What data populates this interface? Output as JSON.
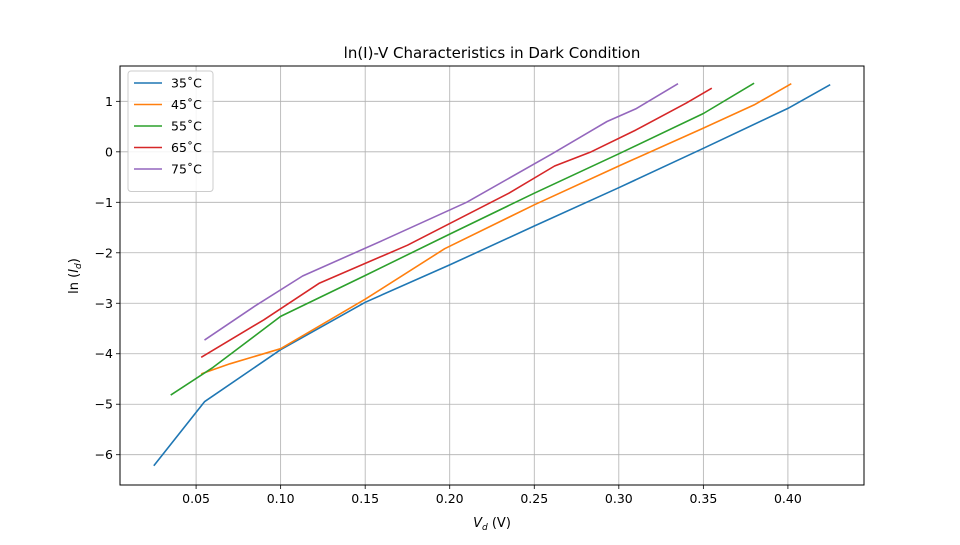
{
  "chart_data": {
    "type": "line",
    "title": "ln(I)-V Characteristics in Dark Condition",
    "xlabel": "V_d (V)",
    "ylabel": "ln (I_d)",
    "xlim": [
      0.005,
      0.445
    ],
    "ylim": [
      -6.6,
      1.7
    ],
    "xticks": [
      0.05,
      0.1,
      0.15,
      0.2,
      0.25,
      0.3,
      0.35,
      0.4
    ],
    "yticks": [
      -6,
      -5,
      -4,
      -3,
      -2,
      -1,
      0,
      1
    ],
    "grid": true,
    "legend_position": "top-left",
    "series": [
      {
        "name": "35˚C",
        "color": "#1f77b4",
        "x": [
          0.025,
          0.055,
          0.1,
          0.15,
          0.2,
          0.25,
          0.3,
          0.35,
          0.4,
          0.425
        ],
        "y": [
          -6.22,
          -4.95,
          -3.92,
          -2.98,
          -2.24,
          -1.47,
          -0.71,
          0.07,
          0.86,
          1.33
        ]
      },
      {
        "name": "45˚C",
        "color": "#ff7f0e",
        "x": [
          0.053,
          0.07,
          0.1,
          0.15,
          0.197,
          0.25,
          0.3,
          0.35,
          0.38,
          0.402
        ],
        "y": [
          -4.4,
          -4.2,
          -3.9,
          -2.92,
          -1.92,
          -1.05,
          -0.28,
          0.47,
          0.93,
          1.35
        ]
      },
      {
        "name": "55˚C",
        "color": "#2ca02c",
        "x": [
          0.035,
          0.06,
          0.1,
          0.15,
          0.2,
          0.25,
          0.3,
          0.35,
          0.38
        ],
        "y": [
          -4.82,
          -4.27,
          -3.26,
          -2.45,
          -1.63,
          -0.82,
          -0.04,
          0.76,
          1.36
        ]
      },
      {
        "name": "65˚C",
        "color": "#d62728",
        "x": [
          0.053,
          0.09,
          0.123,
          0.175,
          0.235,
          0.262,
          0.283,
          0.31,
          0.34,
          0.355
        ],
        "y": [
          -4.07,
          -3.33,
          -2.6,
          -1.85,
          -0.82,
          -0.28,
          -0.01,
          0.43,
          0.97,
          1.26
        ]
      },
      {
        "name": "75˚C",
        "color": "#9467bd",
        "x": [
          0.055,
          0.085,
          0.113,
          0.16,
          0.21,
          0.26,
          0.293,
          0.31,
          0.335
        ],
        "y": [
          -3.73,
          -3.05,
          -2.46,
          -1.76,
          -1.0,
          -0.05,
          0.6,
          0.85,
          1.35
        ]
      }
    ]
  }
}
